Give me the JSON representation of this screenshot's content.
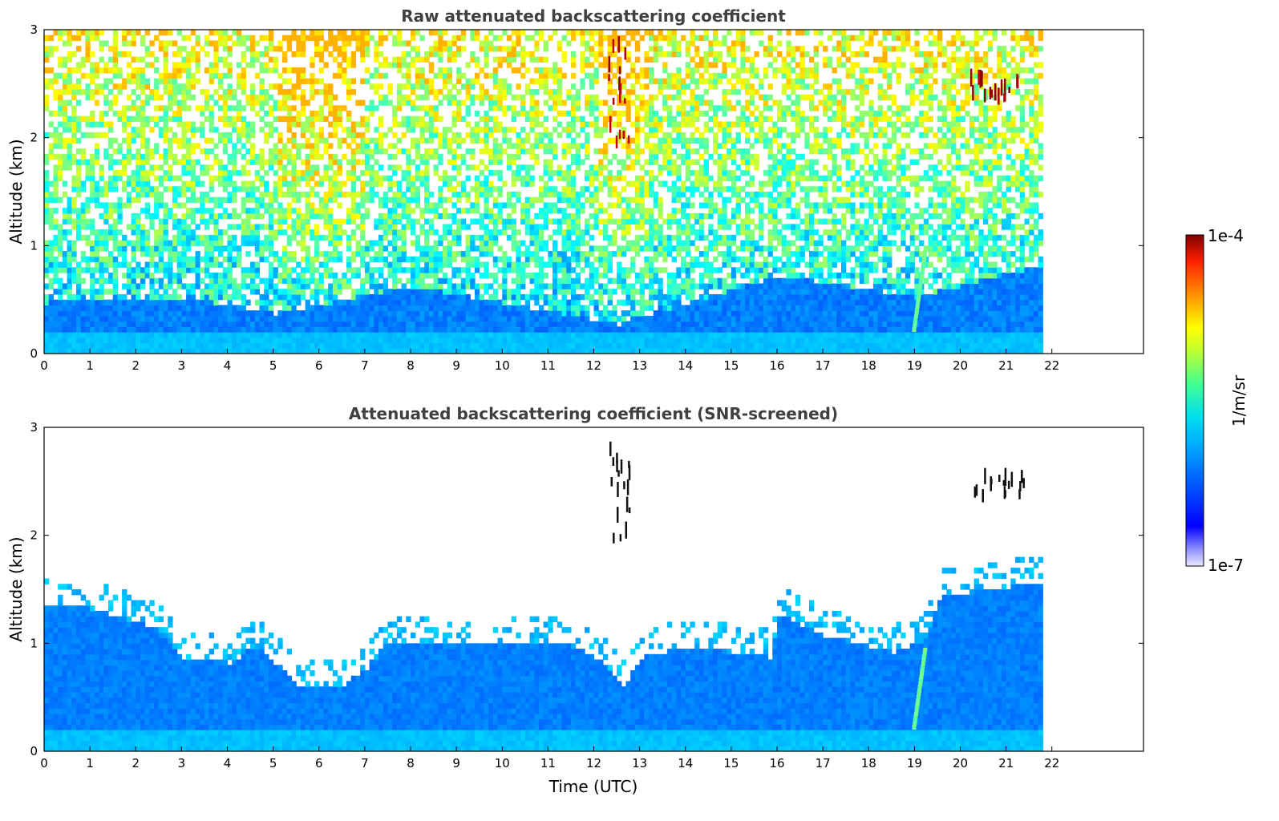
{
  "chart_data": [
    {
      "type": "heatmap",
      "title": "Raw attenuated backscattering coefficient",
      "xlabel": "",
      "ylabel": "Altitude (km)",
      "xlim": [
        0,
        24
      ],
      "ylim": [
        0,
        3
      ],
      "x_ticks": [
        "0",
        "1",
        "2",
        "3",
        "4",
        "5",
        "6",
        "7",
        "8",
        "9",
        "10",
        "11",
        "12",
        "13",
        "14",
        "15",
        "16",
        "17",
        "18",
        "19",
        "20",
        "21",
        "22"
      ],
      "y_ticks": [
        "0",
        "1",
        "2",
        "3"
      ],
      "data_end_time": 21.8,
      "colormap": "jet",
      "features": [
        {
          "kind": "aerosol-layer",
          "t0": 0,
          "t1": 21.8,
          "top_km": 0.2,
          "level": 0.3
        },
        {
          "kind": "boundary-layer",
          "top_km_profile": [
            [
              0,
              0.45
            ],
            [
              3,
              0.5
            ],
            [
              5,
              0.35
            ],
            [
              8,
              0.6
            ],
            [
              12.5,
              0.25
            ],
            [
              16,
              0.7
            ],
            [
              19,
              0.5
            ],
            [
              21.8,
              0.8
            ]
          ],
          "level": 0.24
        },
        {
          "kind": "noisy-free-troposphere",
          "level_range": [
            0.2,
            0.7
          ]
        },
        {
          "kind": "cloud",
          "t_center": 12.55,
          "alt_range_km": [
            1.9,
            2.8
          ],
          "level": 1.0
        },
        {
          "kind": "cloud",
          "t_center": 20.8,
          "alt_range_km": [
            2.3,
            2.5
          ],
          "level": 1.0
        },
        {
          "kind": "rain-streak",
          "t_center": 19.05,
          "alt_range_km": [
            0.2,
            0.95
          ],
          "level": 0.45
        }
      ]
    },
    {
      "type": "heatmap",
      "title": "Attenuated backscattering coefficient (SNR-screened)",
      "xlabel": "Time (UTC)",
      "ylabel": "Altitude (km)",
      "xlim": [
        0,
        24
      ],
      "ylim": [
        0,
        3
      ],
      "x_ticks": [
        "0",
        "1",
        "2",
        "3",
        "4",
        "5",
        "6",
        "7",
        "8",
        "9",
        "10",
        "11",
        "12",
        "13",
        "14",
        "15",
        "16",
        "17",
        "18",
        "19",
        "20",
        "21",
        "22"
      ],
      "y_ticks": [
        "0",
        "1",
        "2",
        "3"
      ],
      "data_end_time": 21.8,
      "colormap": "jet",
      "screened_top_km_profile": [
        [
          0,
          1.35
        ],
        [
          1,
          1.3
        ],
        [
          2.5,
          1.1
        ],
        [
          3,
          0.85
        ],
        [
          4,
          0.8
        ],
        [
          4.6,
          0.95
        ],
        [
          5.5,
          0.6
        ],
        [
          6.5,
          0.6
        ],
        [
          7,
          0.75
        ],
        [
          7.5,
          1.0
        ],
        [
          10,
          1.0
        ],
        [
          11.5,
          0.95
        ],
        [
          12.2,
          0.8
        ],
        [
          12.6,
          0.55
        ],
        [
          13,
          0.85
        ],
        [
          14,
          0.95
        ],
        [
          15.8,
          0.85
        ],
        [
          16,
          1.25
        ],
        [
          17,
          1.05
        ],
        [
          18.5,
          0.9
        ],
        [
          19.2,
          1.0
        ],
        [
          19.5,
          1.4
        ],
        [
          21.8,
          1.55
        ]
      ],
      "features": [
        {
          "kind": "cloud",
          "t_center": 12.55,
          "alt_range_km": [
            1.9,
            2.8
          ],
          "color": "black"
        },
        {
          "kind": "cloud",
          "t_center": 20.8,
          "alt_range_km": [
            2.3,
            2.5
          ],
          "color": "black"
        },
        {
          "kind": "rain-streak",
          "t_center": 19.05,
          "alt_range_km": [
            0.2,
            0.95
          ],
          "level": 0.45
        }
      ]
    }
  ],
  "colorbar": {
    "label": "1/m/sr",
    "max_label": "1e-4",
    "min_label": "1e-7"
  }
}
